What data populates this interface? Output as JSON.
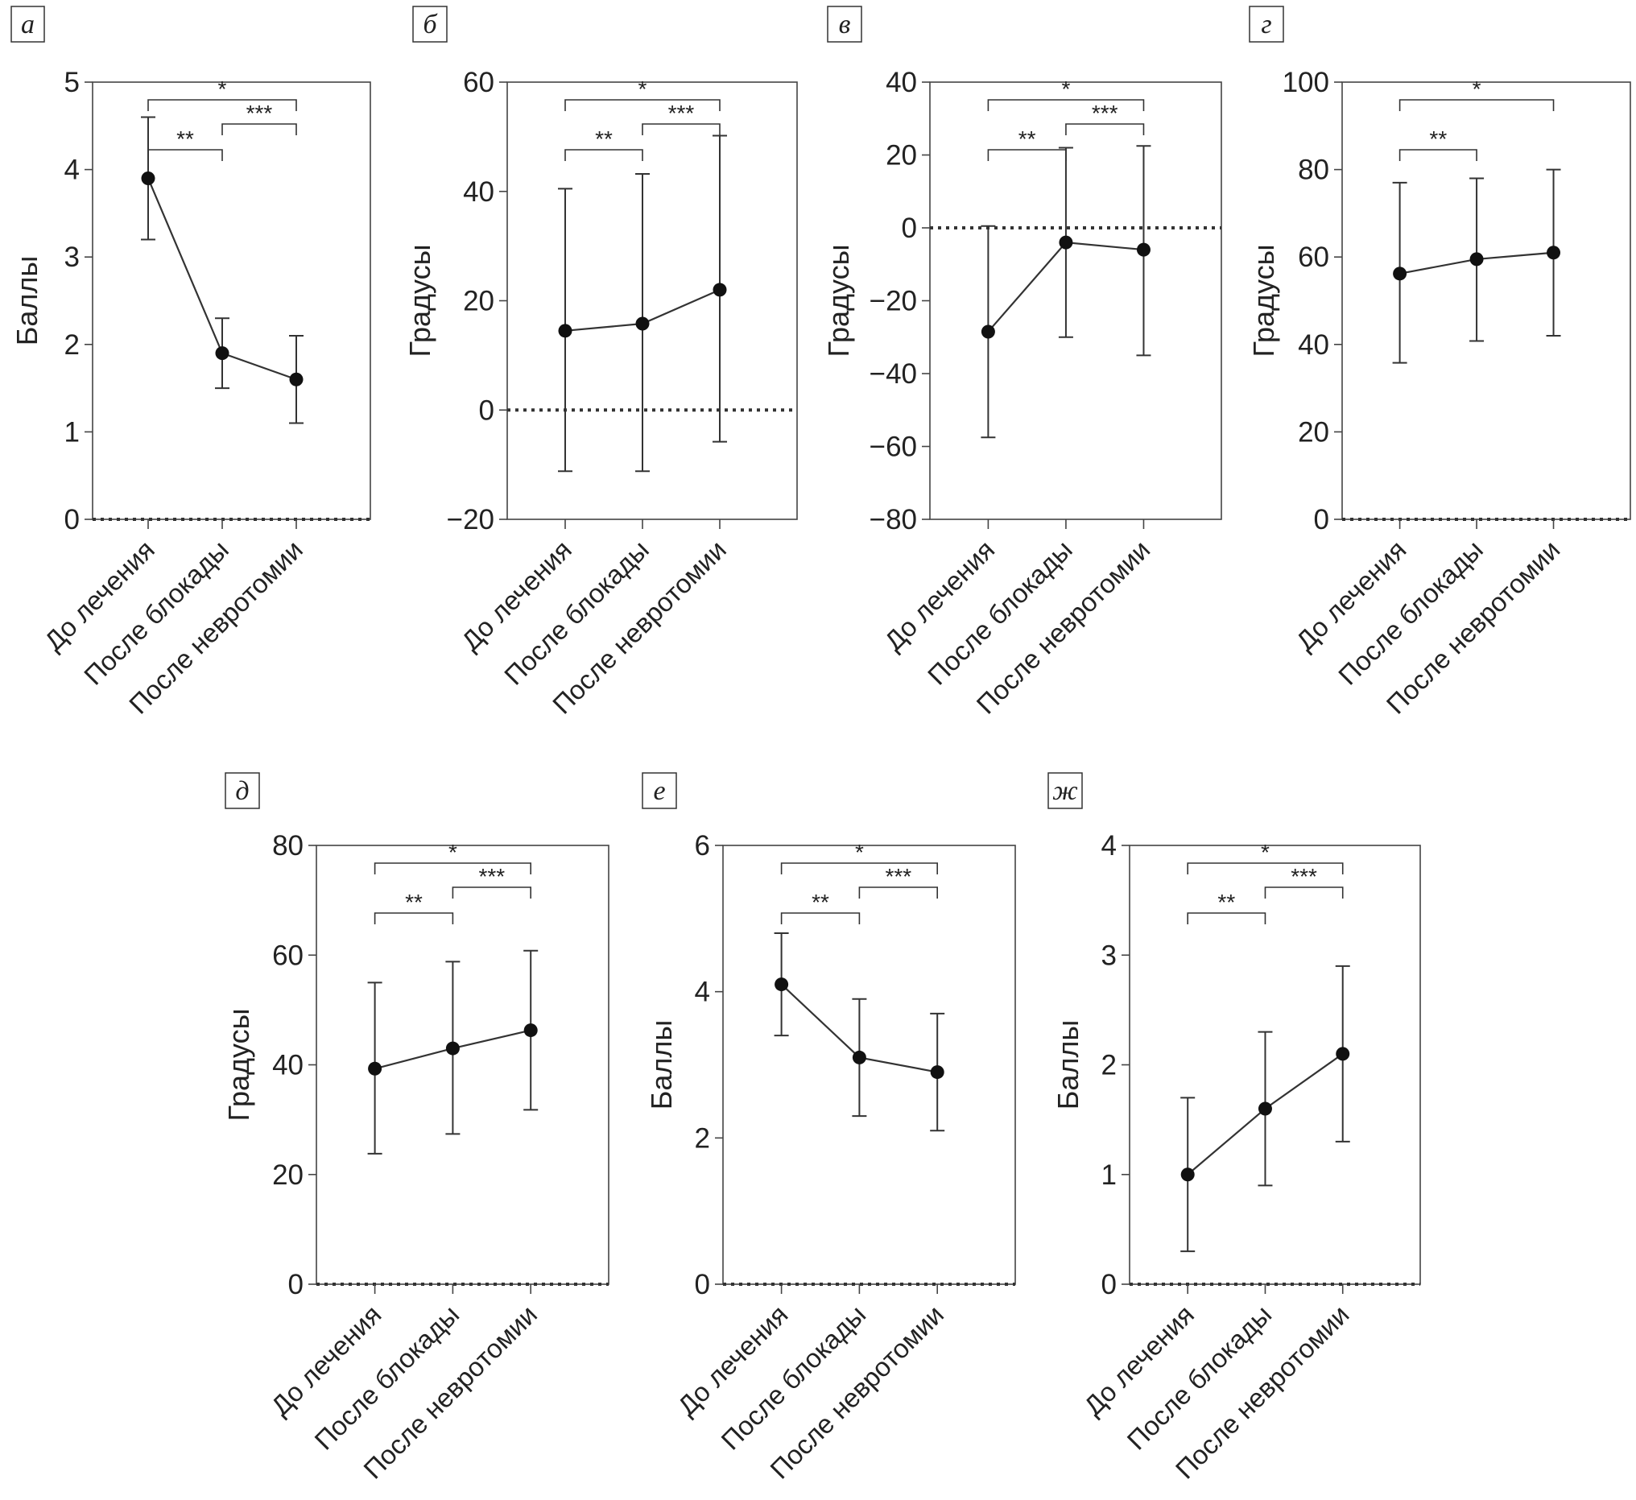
{
  "chart_data": [
    {
      "panel_label": "а",
      "type": "line",
      "categories": [
        "До лечения",
        "После блокады",
        "После невротомии"
      ],
      "ylabel": "Баллы",
      "ylim": [
        0,
        5
      ],
      "yticks": [
        "0",
        "1",
        "2",
        "3",
        "4",
        "5"
      ],
      "ytick_values": [
        0,
        1,
        2,
        3,
        4,
        5
      ],
      "zero_line": true,
      "series": [
        {
          "values": [
            3.9,
            1.9,
            1.6
          ],
          "err_low": [
            3.2,
            1.5,
            1.1
          ],
          "err_high": [
            4.6,
            2.3,
            2.1
          ]
        }
      ],
      "significance": [
        {
          "from": 0,
          "to": 1,
          "label": "**"
        },
        {
          "from": 0,
          "to": 2,
          "label": "*"
        },
        {
          "from": 1,
          "to": 2,
          "label": "***"
        }
      ]
    },
    {
      "panel_label": "б",
      "type": "line",
      "categories": [
        "До лечения",
        "После блокады",
        "После невротомии"
      ],
      "ylabel": "Градусы",
      "ylim": [
        -20,
        60
      ],
      "yticks": [
        "−20",
        "0",
        "20",
        "40",
        "60"
      ],
      "ytick_values": [
        -20,
        0,
        20,
        40,
        60
      ],
      "zero_line": true,
      "series": [
        {
          "values": [
            14.5,
            15.8,
            22
          ],
          "err_low": [
            -11.2,
            -11.2,
            -5.8
          ],
          "err_high": [
            40.5,
            43.2,
            50.2
          ]
        }
      ],
      "significance": [
        {
          "from": 0,
          "to": 1,
          "label": "**"
        },
        {
          "from": 0,
          "to": 2,
          "label": "*"
        },
        {
          "from": 1,
          "to": 2,
          "label": "***"
        }
      ]
    },
    {
      "panel_label": "в",
      "type": "line",
      "categories": [
        "До лечения",
        "После блокады",
        "После невротомии"
      ],
      "ylabel": "Градусы",
      "ylim": [
        -80,
        40
      ],
      "yticks": [
        "−80",
        "−60",
        "−40",
        "−20",
        "0",
        "20",
        "40"
      ],
      "ytick_values": [
        -80,
        -60,
        -40,
        -20,
        0,
        20,
        40
      ],
      "zero_line": true,
      "series": [
        {
          "values": [
            -28.5,
            -4,
            -6
          ],
          "err_low": [
            -57.5,
            -30,
            -35
          ],
          "err_high": [
            0.5,
            22,
            22.5
          ]
        }
      ],
      "significance": [
        {
          "from": 0,
          "to": 1,
          "label": "**"
        },
        {
          "from": 0,
          "to": 2,
          "label": "*"
        },
        {
          "from": 1,
          "to": 2,
          "label": "***"
        }
      ]
    },
    {
      "panel_label": "г",
      "type": "line",
      "categories": [
        "До лечения",
        "После блокады",
        "После невротомии"
      ],
      "ylabel": "Градусы",
      "ylim": [
        0,
        100
      ],
      "yticks": [
        "0",
        "20",
        "40",
        "60",
        "80",
        "100"
      ],
      "ytick_values": [
        0,
        20,
        40,
        60,
        80,
        100
      ],
      "zero_line": true,
      "series": [
        {
          "values": [
            56.2,
            59.5,
            61
          ],
          "err_low": [
            35.8,
            40.8,
            42
          ],
          "err_high": [
            77,
            78,
            80
          ]
        }
      ],
      "significance": [
        {
          "from": 0,
          "to": 1,
          "label": "**"
        },
        {
          "from": 0,
          "to": 2,
          "label": "*"
        }
      ]
    },
    {
      "panel_label": "д",
      "type": "line",
      "categories": [
        "До лечения",
        "После блокады",
        "После невротомии"
      ],
      "ylabel": "Градусы",
      "ylim": [
        0,
        80
      ],
      "yticks": [
        "0",
        "20",
        "40",
        "60",
        "80"
      ],
      "ytick_values": [
        0,
        20,
        40,
        60,
        80
      ],
      "zero_line": true,
      "series": [
        {
          "values": [
            39.3,
            43,
            46.3
          ],
          "err_low": [
            23.8,
            27.4,
            31.8
          ],
          "err_high": [
            55,
            58.8,
            60.8
          ]
        }
      ],
      "significance": [
        {
          "from": 0,
          "to": 1,
          "label": "**"
        },
        {
          "from": 0,
          "to": 2,
          "label": "*"
        },
        {
          "from": 1,
          "to": 2,
          "label": "***"
        }
      ]
    },
    {
      "panel_label": "е",
      "type": "line",
      "categories": [
        "До лечения",
        "После блокады",
        "После невротомии"
      ],
      "ylabel": "Баллы",
      "ylim": [
        0,
        6
      ],
      "yticks": [
        "0",
        "2",
        "4",
        "6"
      ],
      "ytick_values": [
        0,
        2,
        4,
        6
      ],
      "zero_line": true,
      "series": [
        {
          "values": [
            4.1,
            3.1,
            2.9
          ],
          "err_low": [
            3.4,
            2.3,
            2.1
          ],
          "err_high": [
            4.8,
            3.9,
            3.7
          ]
        }
      ],
      "significance": [
        {
          "from": 0,
          "to": 1,
          "label": "**"
        },
        {
          "from": 0,
          "to": 2,
          "label": "*"
        },
        {
          "from": 1,
          "to": 2,
          "label": "***"
        }
      ]
    },
    {
      "panel_label": "ж",
      "type": "line",
      "categories": [
        "До лечения",
        "После блокады",
        "После невротомии"
      ],
      "ylabel": "Баллы",
      "ylim": [
        0,
        4
      ],
      "yticks": [
        "0",
        "1",
        "2",
        "3",
        "4"
      ],
      "ytick_values": [
        0,
        1,
        2,
        3,
        4
      ],
      "zero_line": true,
      "series": [
        {
          "values": [
            1,
            1.6,
            2.1
          ],
          "err_low": [
            0.3,
            0.9,
            1.3
          ],
          "err_high": [
            1.7,
            2.3,
            2.9
          ]
        }
      ],
      "significance": [
        {
          "from": 0,
          "to": 1,
          "label": "**"
        },
        {
          "from": 0,
          "to": 2,
          "label": "*"
        },
        {
          "from": 1,
          "to": 2,
          "label": "***"
        }
      ]
    }
  ]
}
